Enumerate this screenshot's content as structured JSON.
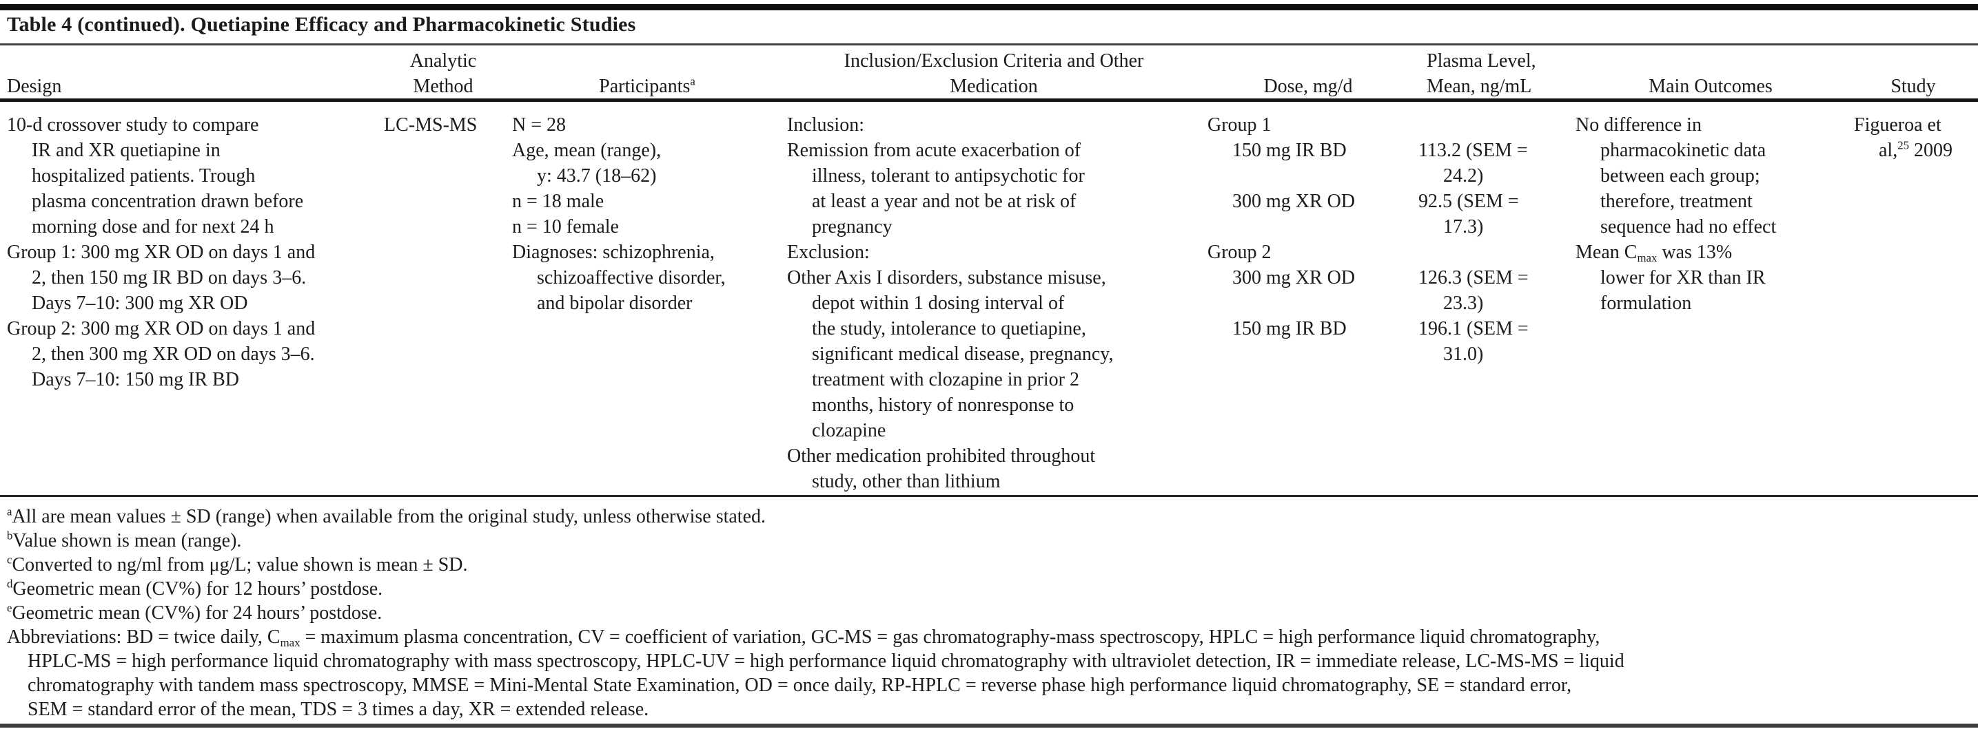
{
  "title": "Table 4 (continued). Quetiapine Efficacy and Pharmacokinetic Studies",
  "table": {
    "columns": {
      "design": {
        "header": [
          {
            "t": ""
          },
          {
            "t": "Design"
          }
        ],
        "cells": [
          {
            "t": "10-d crossover study to compare",
            "i": 0
          },
          {
            "t": "IR and XR quetiapine in",
            "i": 1
          },
          {
            "t": "hospitalized patients. Trough",
            "i": 1
          },
          {
            "t": "plasma concentration drawn before",
            "i": 1
          },
          {
            "t": "morning dose and for next 24 h",
            "i": 1
          },
          {
            "t": "Group 1: 300 mg XR OD on days 1 and",
            "i": 0
          },
          {
            "t": "2, then 150 mg IR BD on days 3–6.",
            "i": 1
          },
          {
            "t": "Days 7–10: 300 mg XR OD",
            "i": 1
          },
          {
            "t": "Group 2: 300 mg XR OD on days 1 and",
            "i": 0
          },
          {
            "t": "2, then 300 mg XR OD on days 3–6.",
            "i": 1
          },
          {
            "t": "Days 7–10: 150 mg IR BD",
            "i": 1
          }
        ]
      },
      "analytic_method": {
        "header": [
          {
            "t": "Analytic"
          },
          {
            "t": "Method"
          }
        ],
        "cells": [
          {
            "t": "LC-MS-MS",
            "i": 0
          }
        ]
      },
      "participants": {
        "header": [
          {
            "t": ""
          },
          {
            "t": "Participants^a^"
          }
        ],
        "cells": [
          {
            "t": "N = 28",
            "i": 0
          },
          {
            "t": "Age, mean (range),",
            "i": 0
          },
          {
            "t": "y: 43.7 (18–62)",
            "i": 1
          },
          {
            "t": "n = 18 male",
            "i": 0
          },
          {
            "t": "n = 10 female",
            "i": 0
          },
          {
            "t": "Diagnoses: schizophrenia,",
            "i": 0
          },
          {
            "t": "schizoaffective disorder,",
            "i": 1
          },
          {
            "t": "and bipolar disorder",
            "i": 1
          }
        ]
      },
      "inclusion_exclusion": {
        "header": [
          {
            "t": "Inclusion/Exclusion Criteria and Other"
          },
          {
            "t": "Medication"
          }
        ],
        "cells": [
          {
            "t": "Inclusion:",
            "i": 0
          },
          {
            "t": "Remission from acute exacerbation of",
            "i": 0
          },
          {
            "t": "illness, tolerant to antipsychotic for",
            "i": 1
          },
          {
            "t": "at least a year and not be at risk of",
            "i": 1
          },
          {
            "t": "pregnancy",
            "i": 1
          },
          {
            "t": "Exclusion:",
            "i": 0
          },
          {
            "t": "Other Axis I disorders, substance misuse,",
            "i": 0
          },
          {
            "t": "depot within 1 dosing interval of",
            "i": 1
          },
          {
            "t": "the study, intolerance to quetiapine,",
            "i": 1
          },
          {
            "t": "significant medical disease, pregnancy,",
            "i": 1
          },
          {
            "t": "treatment with clozapine in prior 2",
            "i": 1
          },
          {
            "t": "months, history of nonresponse to",
            "i": 1
          },
          {
            "t": "clozapine",
            "i": 1
          },
          {
            "t": "Other medication prohibited throughout",
            "i": 0
          },
          {
            "t": "study, other than lithium",
            "i": 1
          }
        ]
      },
      "dose": {
        "header": [
          {
            "t": ""
          },
          {
            "t": "Dose, mg/d"
          }
        ],
        "cells": [
          {
            "t": "Group 1",
            "i": 0
          },
          {
            "t": "150 mg IR BD",
            "i": 1
          },
          {
            "t": "",
            "i": 0
          },
          {
            "t": "300 mg XR OD",
            "i": 1
          },
          {
            "t": "",
            "i": 0
          },
          {
            "t": "Group 2",
            "i": 0
          },
          {
            "t": "300 mg XR OD",
            "i": 1
          },
          {
            "t": "",
            "i": 0
          },
          {
            "t": "150 mg IR BD",
            "i": 1
          }
        ]
      },
      "plasma_level": {
        "header": [
          {
            "t": "Plasma Level,"
          },
          {
            "t": "Mean, ng/mL"
          }
        ],
        "cells": [
          {
            "t": "",
            "i": 0
          },
          {
            "t": "113.2 (SEM =",
            "i": 0
          },
          {
            "t": "24.2)",
            "i": 1
          },
          {
            "t": "92.5 (SEM =",
            "i": 0
          },
          {
            "t": "17.3)",
            "i": 1
          },
          {
            "t": "",
            "i": 0
          },
          {
            "t": "126.3 (SEM =",
            "i": 0
          },
          {
            "t": "23.3)",
            "i": 1
          },
          {
            "t": "196.1 (SEM =",
            "i": 0
          },
          {
            "t": "31.0)",
            "i": 1
          }
        ]
      },
      "main_outcomes": {
        "header": [
          {
            "t": ""
          },
          {
            "t": "Main Outcomes"
          }
        ],
        "cells": [
          {
            "t": "No difference in",
            "i": 0
          },
          {
            "t": "pharmacokinetic data",
            "i": 1
          },
          {
            "t": "between each group;",
            "i": 1
          },
          {
            "t": "therefore, treatment",
            "i": 1
          },
          {
            "t": "sequence had no effect",
            "i": 1
          },
          {
            "t": "Mean C_{max} was 13%",
            "i": 0
          },
          {
            "t": "lower for XR than IR",
            "i": 1
          },
          {
            "t": "formulation",
            "i": 1
          }
        ]
      },
      "study": {
        "header": [
          {
            "t": ""
          },
          {
            "t": "Study"
          }
        ],
        "cells": [
          {
            "t": "Figueroa et",
            "i": 0
          },
          {
            "t": "al,^25^ 2009",
            "i": 1
          }
        ]
      }
    }
  },
  "footnotes": {
    "lines": [
      {
        "t": "^a^All are mean values ± SD (range) when available from the original study, unless otherwise stated.",
        "i": 0
      },
      {
        "t": "^b^Value shown is mean (range).",
        "i": 0
      },
      {
        "t": "^c^Converted to ng/ml from μg/L; value shown is mean ± SD.",
        "i": 0
      },
      {
        "t": "^d^Geometric mean (CV%) for 12 hours’ postdose.",
        "i": 0
      },
      {
        "t": "^e^Geometric mean (CV%) for 24 hours’ postdose.",
        "i": 0
      },
      {
        "t": "Abbreviations: BD = twice daily, C_{max} = maximum plasma concentration, CV = coefficient of variation, GC-MS = gas chromatography-mass spectroscopy, HPLC = high performance liquid chromatography,",
        "i": 0
      },
      {
        "t": "HPLC-MS = high performance liquid chromatography with mass spectroscopy, HPLC-UV = high performance liquid chromatography with ultraviolet detection, IR = immediate release, LC-MS-MS = liquid",
        "i": 1
      },
      {
        "t": "chromatography with tandem mass spectroscopy, MMSE = Mini-Mental State Examination, OD = once daily, RP-HPLC = reverse phase high performance liquid chromatography, SE = standard error,",
        "i": 1
      },
      {
        "t": "SEM = standard error of the mean, TDS = 3 times a day, XR = extended release.",
        "i": 1
      }
    ]
  }
}
